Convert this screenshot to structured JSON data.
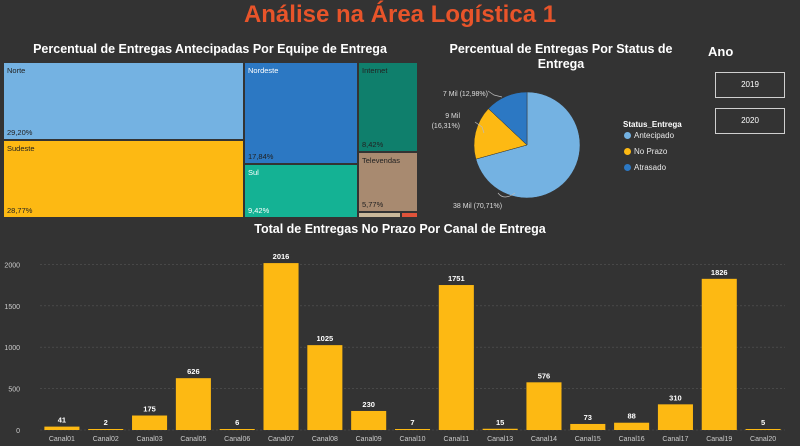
{
  "title": "Análise na Área Logística 1",
  "treemap": {
    "title": "Percentual de Entregas Antecipadas Por Equipe de Entrega",
    "items": [
      {
        "name": "Norte",
        "pct": "29,20%",
        "color": "#74b2e2"
      },
      {
        "name": "Sudeste",
        "pct": "28,77%",
        "color": "#fdb913"
      },
      {
        "name": "Nordeste",
        "pct": "17,84%",
        "color": "#2c78c3"
      },
      {
        "name": "Sul",
        "pct": "9,42%",
        "color": "#14b294"
      },
      {
        "name": "Internet",
        "pct": "8,42%",
        "color": "#0f7f6c"
      },
      {
        "name": "Televendas",
        "pct": "5,77%",
        "color": "#a88a70"
      }
    ]
  },
  "pie": {
    "title_line1": "Percentual de Entregas Por Status de",
    "title_line2": "Entrega",
    "legend_title": "Status_Entrega",
    "slices": [
      {
        "name": "Antecipado",
        "value": 70.71,
        "label": "38 Mil (70,71%)",
        "color": "#74b2e2"
      },
      {
        "name": "No Prazo",
        "value": 16.31,
        "label_line1": "9 Mil",
        "label_line2": "(16,31%)",
        "color": "#fdb913"
      },
      {
        "name": "Atrasado",
        "value": 12.98,
        "label": "7 Mil (12,98%)",
        "color": "#2c78c3"
      }
    ]
  },
  "slicer": {
    "title": "Ano",
    "options": [
      "2019",
      "2020"
    ]
  },
  "chart_data": {
    "type": "bar",
    "title": "Total de Entregas No Prazo Por Canal de Entrega",
    "categories": [
      "Canal01",
      "Canal02",
      "Canal03",
      "Canal05",
      "Canal06",
      "Canal07",
      "Canal08",
      "Canal09",
      "Canal10",
      "Canal11",
      "Canal13",
      "Canal14",
      "Canal15",
      "Canal16",
      "Canal17",
      "Canal19",
      "Canal20"
    ],
    "values": [
      41,
      2,
      175,
      626,
      6,
      2016,
      1025,
      230,
      7,
      1751,
      15,
      576,
      73,
      88,
      310,
      1826,
      5
    ],
    "yticks": [
      0,
      500,
      1000,
      1500,
      2000
    ],
    "ylim": [
      0,
      2150
    ],
    "bar_color": "#fdb913"
  }
}
